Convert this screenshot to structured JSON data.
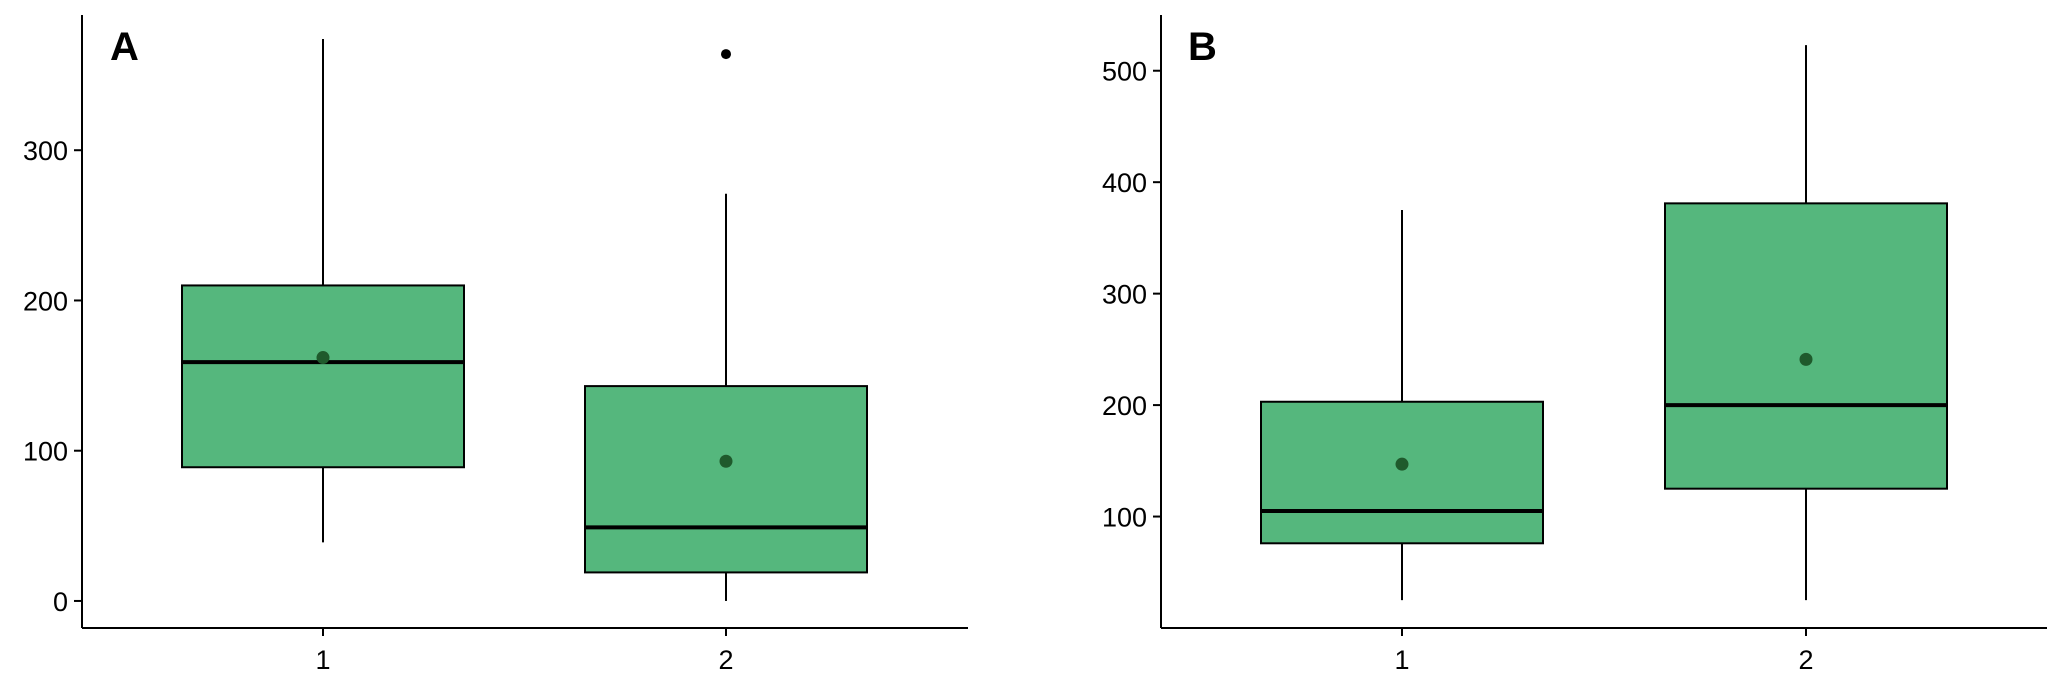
{
  "colors": {
    "box_fill": "#55b77d",
    "mean_point": "#1f5a2c",
    "outlier": "#000000"
  },
  "chart_data": [
    {
      "type": "boxplot",
      "panel_label": "A",
      "title": "",
      "xlabel": "",
      "ylabel": "",
      "categories": [
        "1",
        "2"
      ],
      "ylim": [
        -18,
        390
      ],
      "yticks": [
        0,
        100,
        200,
        300
      ],
      "grid": false,
      "boxes": [
        {
          "category": "1",
          "whisker_low": 39,
          "q1": 89,
          "median": 159,
          "q3": 210,
          "whisker_high": 374,
          "mean": 162,
          "outliers": []
        },
        {
          "category": "2",
          "whisker_low": 0,
          "q1": 19,
          "median": 49,
          "q3": 143,
          "whisker_high": 271,
          "mean": 93,
          "outliers": [
            364
          ]
        }
      ]
    },
    {
      "type": "boxplot",
      "panel_label": "B",
      "title": "",
      "xlabel": "",
      "ylabel": "",
      "categories": [
        "1",
        "2"
      ],
      "ylim": [
        0,
        550
      ],
      "yticks": [
        100,
        200,
        300,
        400,
        500
      ],
      "grid": false,
      "boxes": [
        {
          "category": "1",
          "whisker_low": 25,
          "q1": 76,
          "median": 105,
          "q3": 203,
          "whisker_high": 375,
          "mean": 147,
          "outliers": []
        },
        {
          "category": "2",
          "whisker_low": 25,
          "q1": 125,
          "median": 200,
          "q3": 381,
          "whisker_high": 523,
          "mean": 241,
          "outliers": []
        }
      ]
    }
  ]
}
